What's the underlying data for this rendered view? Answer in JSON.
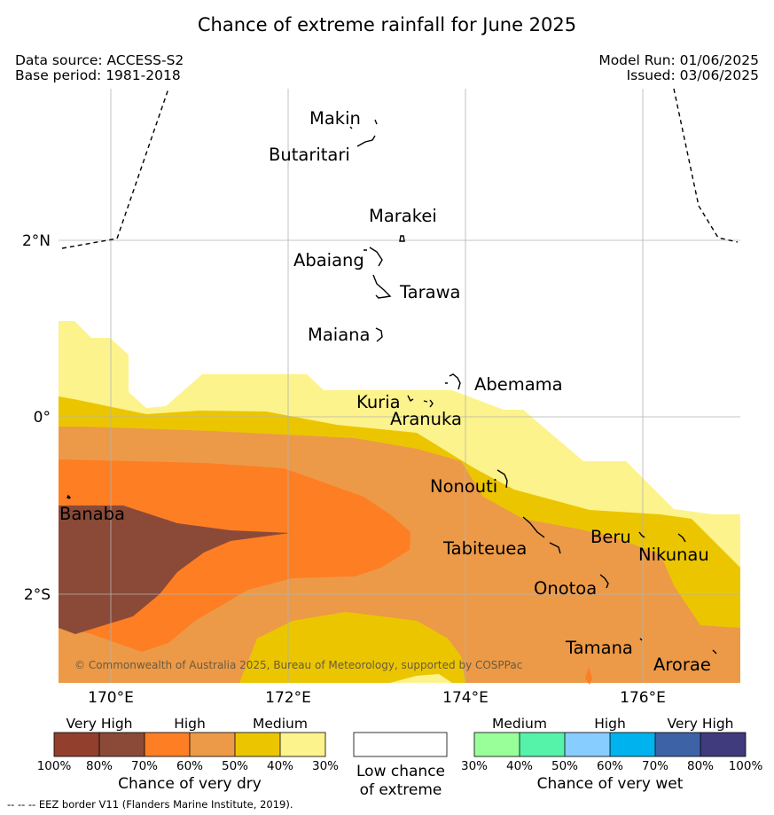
{
  "title": "Chance of extreme rainfall for June 2025",
  "data_source": "Data source: ACCESS-S2",
  "base_period": "Base period: 1981-2018",
  "model_run": "Model Run: 01/06/2025",
  "issued": "Issued: 03/06/2025",
  "axes": {
    "lon_labels": [
      "170°E",
      "172°E",
      "174°E",
      "176°E"
    ],
    "lat_labels": [
      "2°N",
      "0°",
      "2°S"
    ]
  },
  "places": [
    "Makin",
    "Butaritari",
    "Marakei",
    "Abaiang",
    "Tarawa",
    "Maiana",
    "Abemama",
    "Kuria",
    "Aranuka",
    "Nonouti",
    "Banaba",
    "Tabiteuea",
    "Beru",
    "Nikunau",
    "Onotoa",
    "Tamana",
    "Arorae"
  ],
  "copyright": "© Commonwealth of Australia 2025, Bureau of Meteorology, supported by COSPPac",
  "dry_legend": {
    "categories": [
      "Very High",
      "High",
      "Medium"
    ],
    "ticks": [
      "100%",
      "80%",
      "70%",
      "60%",
      "50%",
      "40%",
      "30%"
    ],
    "colors": [
      "#923f2e",
      "#8b4a38",
      "#fe7e23",
      "#ec9a48",
      "#ebc600",
      "#fdf38c"
    ],
    "title": "Chance of very dry"
  },
  "low_legend": {
    "line1": "Low chance",
    "line2": "of extreme",
    "color": "#ffffff"
  },
  "wet_legend": {
    "categories": [
      "Medium",
      "High",
      "Very High"
    ],
    "ticks": [
      "30%",
      "40%",
      "50%",
      "60%",
      "70%",
      "80%",
      "100%"
    ],
    "colors": [
      "#99ff99",
      "#55f2aa",
      "#87cdff",
      "#00b2ee",
      "#3d62a6",
      "#3f3b7c"
    ],
    "title": "Chance of very wet"
  },
  "footer": "--  --  -- EEZ border V11 (Flanders Marine Institute, 2019)."
}
